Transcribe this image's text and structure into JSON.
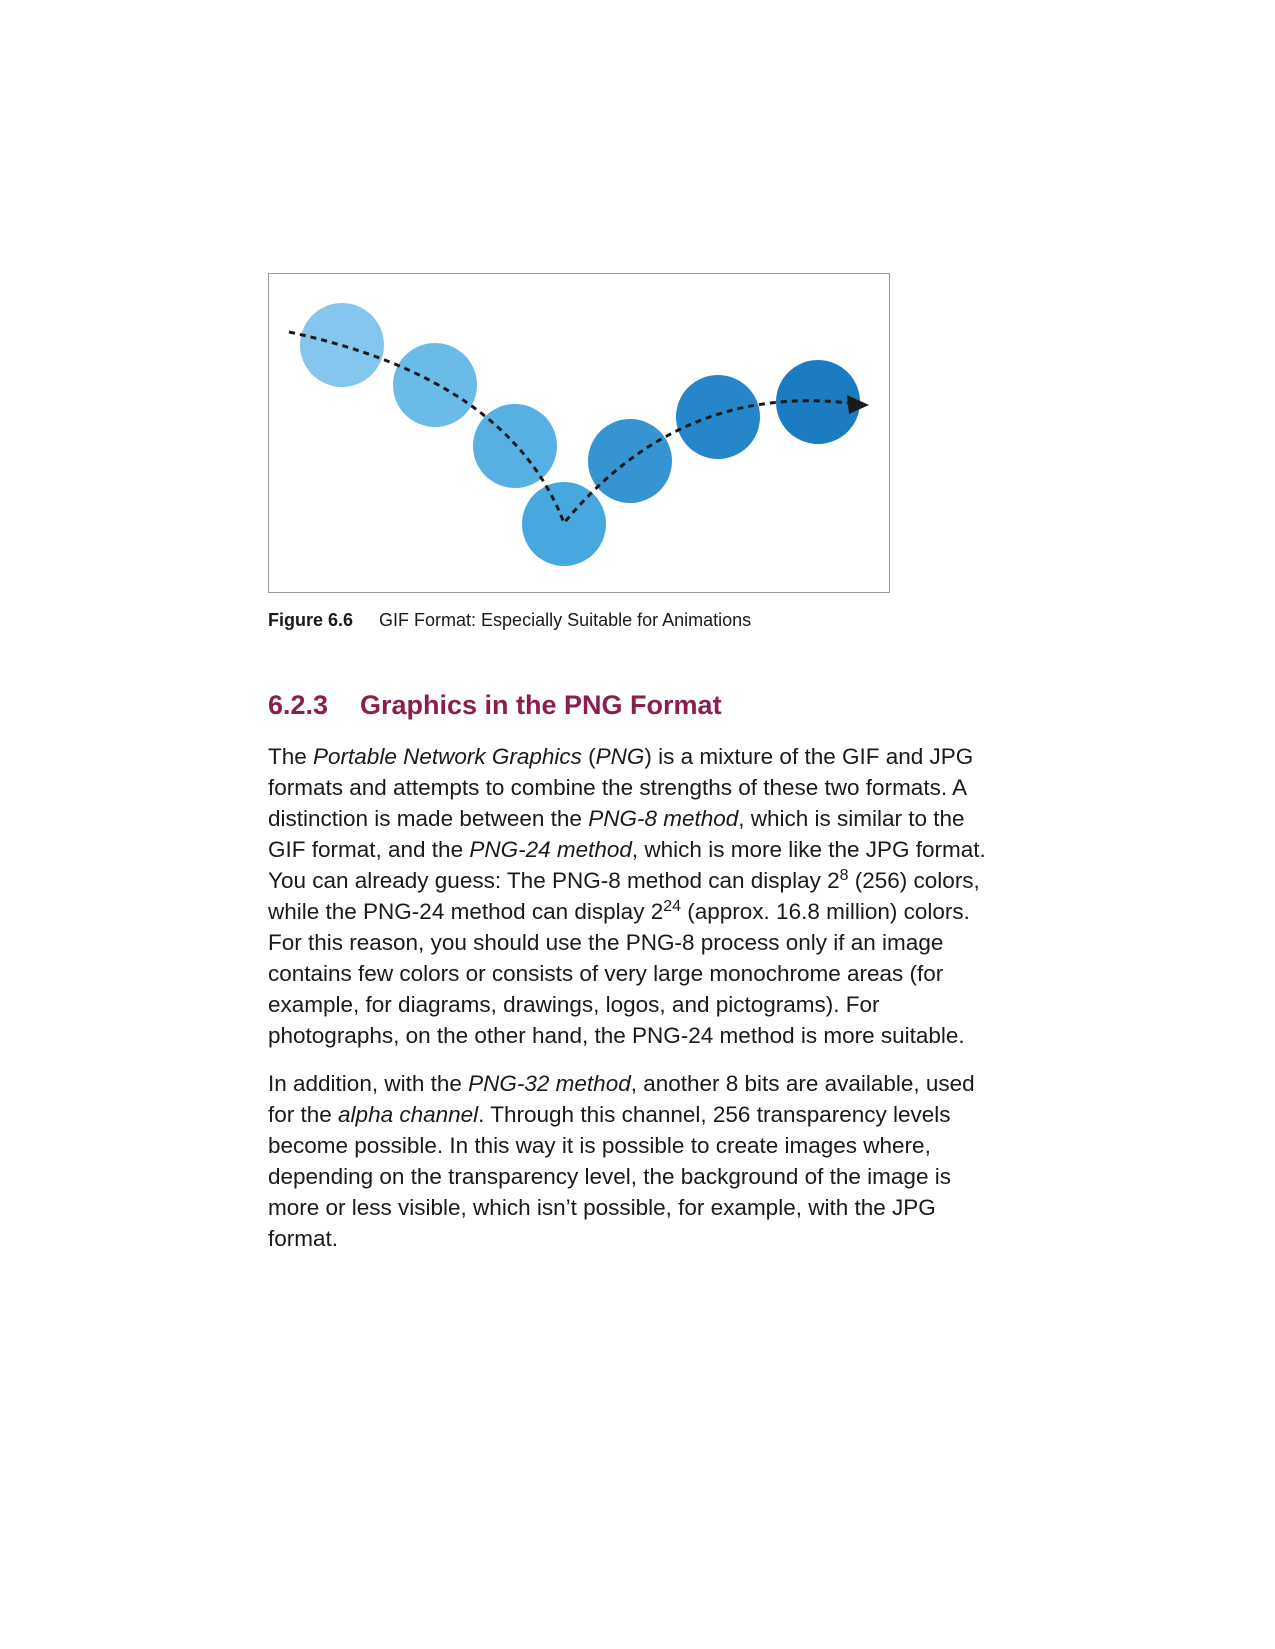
{
  "figure": {
    "number": "Figure 6.6",
    "caption": "GIF Format: Especially Suitable for Animations",
    "colors": {
      "circle_1": "#85c6ee",
      "circle_2": "#6bbbe9",
      "circle_3": "#56b0e4",
      "circle_4": "#46a8df",
      "circle_5": "#3794d3",
      "circle_6": "#2586ca",
      "circle_7": "#1b7cc2",
      "arrow": "#1a1a1a",
      "frame_border": "#9a9a9a"
    }
  },
  "section": {
    "number": "6.2.3",
    "title": "Graphics in the PNG Format",
    "color": "#8b1e4f"
  },
  "paragraph1": {
    "l1a": "The ",
    "l1b": "Portable Network Graphics",
    "l1c": " (",
    "l1d": "PNG",
    "l1e": ") is a mixture of the GIF and JPG",
    "l2": "formats and attempts to combine the strengths of these two formats. A",
    "l3a": "distinction is made between the ",
    "l3b": "PNG-8 method",
    "l3c": ", which is similar to the",
    "l4a": "GIF format, and the ",
    "l4b": "PNG-24 method",
    "l4c": ", which is more like the JPG format.",
    "l5a": "You can already guess: The PNG-8 method can display 2",
    "l5b": "8",
    "l5c": " (256) colors,",
    "l6a": "while the PNG-24 method can display 2",
    "l6b": "24",
    "l6c": " (approx. 16.8 million) colors.",
    "l7": "For this reason, you should use the PNG-8 process only if an image",
    "l8": "contains few colors or consists of very large monochrome areas (for",
    "l9": "example, for diagrams, drawings, logos, and pictograms). For",
    "l10": "photographs, on the other hand, the PNG-24 method is more suitable."
  },
  "paragraph2": {
    "l1a": "In addition, with the ",
    "l1b": "PNG-32 method",
    "l1c": ", another 8 bits are available, used",
    "l2a": "for the ",
    "l2b": "alpha channel",
    "l2c": ". Through this channel, 256 transparency levels",
    "l3": "become possible. In this way it is possible to create images where,",
    "l4": "depending on the transparency level, the background of the image is",
    "l5": "more or less visible, which isn’t possible, for example, with the JPG",
    "l6": "format."
  }
}
